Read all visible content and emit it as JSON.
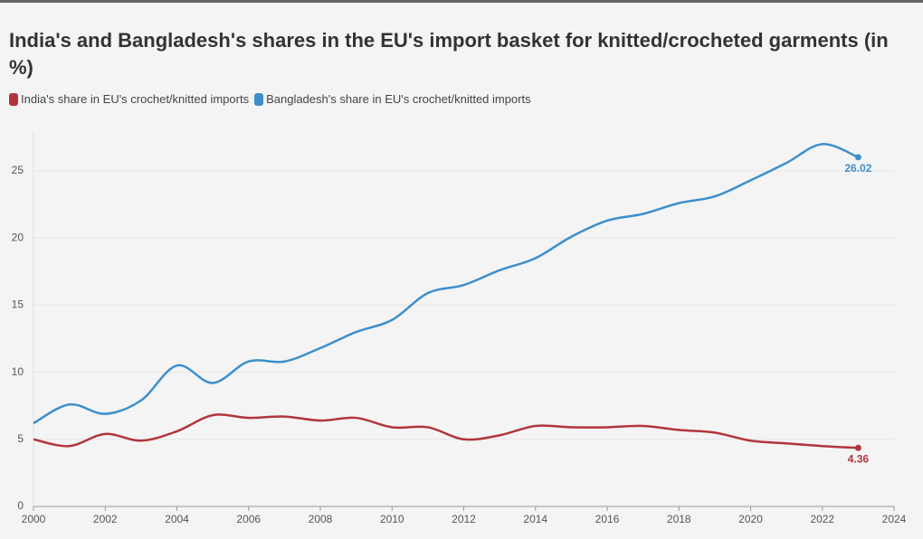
{
  "chart_data": {
    "type": "line",
    "title": "India's and Bangladesh's shares in the EU's import basket for knitted/crocheted garments (in %)",
    "x": [
      2000,
      2001,
      2002,
      2003,
      2004,
      2005,
      2006,
      2007,
      2008,
      2009,
      2010,
      2011,
      2012,
      2013,
      2014,
      2015,
      2016,
      2017,
      2018,
      2019,
      2020,
      2021,
      2022,
      2023
    ],
    "series": [
      {
        "name": "India's share in EU's crochet/knitted imports",
        "color": "#b0363c",
        "values": [
          5.0,
          4.5,
          5.4,
          4.9,
          5.6,
          6.8,
          6.6,
          6.7,
          6.4,
          6.6,
          5.9,
          5.9,
          5.0,
          5.3,
          6.0,
          5.9,
          5.9,
          6.0,
          5.7,
          5.5,
          4.9,
          4.7,
          4.5,
          4.36
        ]
      },
      {
        "name": "Bangladesh's share in EU's crochet/knitted imports",
        "color": "#3d8fcb",
        "values": [
          6.2,
          7.6,
          6.9,
          7.9,
          10.5,
          9.2,
          10.8,
          10.8,
          11.8,
          13.0,
          13.9,
          15.9,
          16.5,
          17.6,
          18.5,
          20.1,
          21.3,
          21.8,
          22.6,
          23.1,
          24.3,
          25.6,
          27.0,
          26.02
        ]
      }
    ],
    "xlim": [
      2000,
      2024
    ],
    "xticks": [
      2000,
      2002,
      2004,
      2006,
      2008,
      2010,
      2012,
      2014,
      2016,
      2018,
      2020,
      2022,
      2024
    ],
    "ylim": [
      0,
      28
    ],
    "yticks": [
      0,
      5,
      10,
      15,
      20,
      25
    ],
    "grid": true
  }
}
